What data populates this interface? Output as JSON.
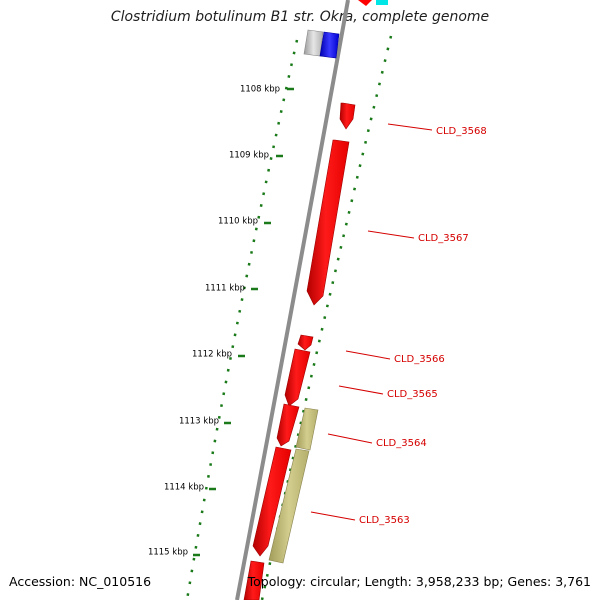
{
  "title": "Clostridium botulinum B1 str. Okra, complete genome",
  "accession": "Accession: NC_010516",
  "topology": "Topology: circular; Length: 3,958,233 bp; Genes: 3,761",
  "colors": {
    "cds": "#ff0000",
    "cds_dark": "#b00000",
    "rrna": "#c2bc7a",
    "backbone": "#909090",
    "tick": "#1a7a1a",
    "label": "#d50000"
  },
  "scale_labels": [
    "1108 kbp",
    "1109 kbp",
    "1110 kbp",
    "1111 kbp",
    "1112 kbp",
    "1113 kbp",
    "1114 kbp",
    "1115 kbp"
  ],
  "genes": [
    {
      "name": "CLD_3568"
    },
    {
      "name": "CLD_3567"
    },
    {
      "name": "CLD_3566"
    },
    {
      "name": "CLD_3565"
    },
    {
      "name": "CLD_3564"
    },
    {
      "name": "CLD_3563"
    }
  ]
}
